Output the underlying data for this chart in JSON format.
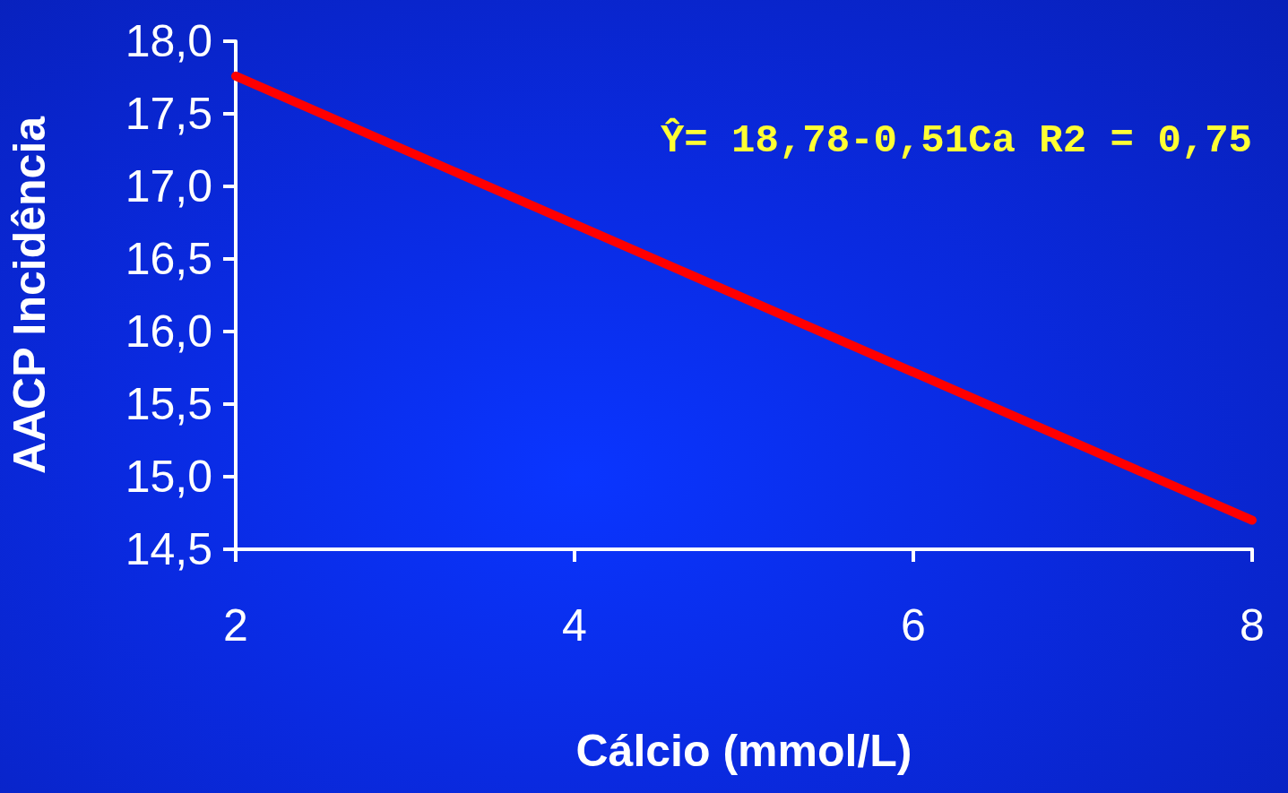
{
  "chart_data": {
    "type": "line",
    "xlabel": "Cálcio (mmol/L)",
    "ylabel": "AACP Incidência",
    "x": [
      2,
      8
    ],
    "series": [
      {
        "color": "#ff0000",
        "values": [
          17.76,
          14.7
        ]
      }
    ],
    "xlim": [
      2,
      8
    ],
    "xticks": [
      2,
      4,
      6,
      8
    ],
    "ylim": [
      14.5,
      18
    ],
    "yticks": [
      {
        "value": 14.5,
        "label": "14,5"
      },
      {
        "value": 15,
        "label": "15,0"
      },
      {
        "value": 15.5,
        "label": "15,5"
      },
      {
        "value": 16,
        "label": "16,0"
      },
      {
        "value": 16.5,
        "label": "16,5"
      },
      {
        "value": 17,
        "label": "17,0"
      },
      {
        "value": 17.5,
        "label": "17,5"
      },
      {
        "value": 18,
        "label": "18,0"
      }
    ],
    "annotations": [
      "Ŷ= 18,78-0,51Ca R2 = 0,75"
    ],
    "grid": false
  }
}
